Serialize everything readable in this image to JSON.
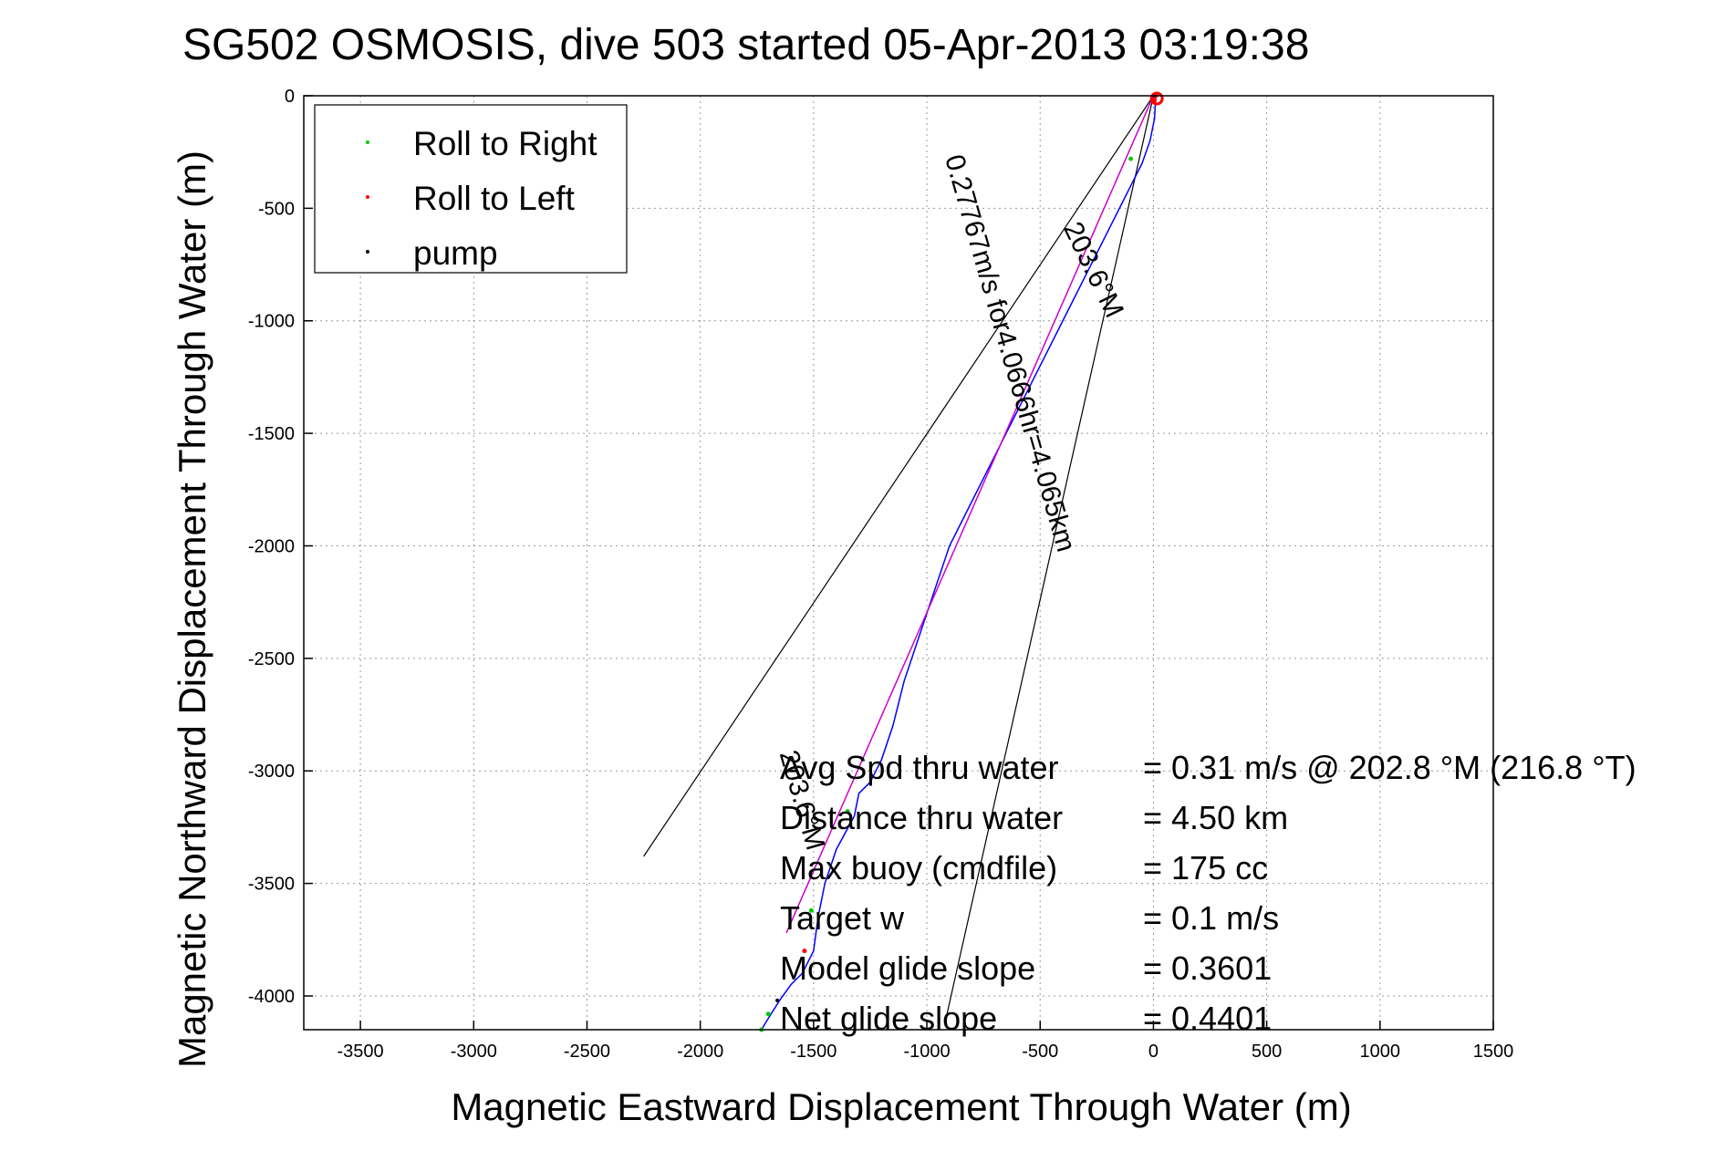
{
  "chart_data": {
    "type": "line",
    "title": "SG502 OSMOSIS, dive 503 started 05-Apr-2013 03:19:38",
    "xlabel": "Magnetic Eastward Displacement Through Water (m)",
    "ylabel": "Magnetic Northward Displacement Through Water (m)",
    "xlim": [
      -3750,
      1500
    ],
    "ylim": [
      -4150,
      0
    ],
    "xticks": [
      -3500,
      -3000,
      -2500,
      -2000,
      -1500,
      -1000,
      -500,
      0,
      500,
      1000,
      1500
    ],
    "yticks": [
      0,
      -500,
      -1000,
      -1500,
      -2000,
      -2500,
      -3000,
      -3500,
      -4000
    ],
    "grid": true,
    "legend_position": "top-left",
    "legend": [
      {
        "label": "Roll to Right",
        "color": "#00cc00"
      },
      {
        "label": "Roll to Left",
        "color": "#ff0000"
      },
      {
        "label": "pump",
        "color": "#000000"
      }
    ],
    "series": [
      {
        "color": "#0000ff",
        "x": [
          10,
          5,
          -15,
          -50,
          -100,
          -150,
          -200,
          -300,
          -400,
          -500,
          -600,
          -700,
          -800,
          -900,
          -1000,
          -1100,
          -1150,
          -1200,
          -1250,
          -1300,
          -1320,
          -1400,
          -1450,
          -1480,
          -1500,
          -1550,
          -1600,
          -1650,
          -1700,
          -1730
        ],
        "y": [
          0,
          -100,
          -200,
          -300,
          -400,
          -500,
          -600,
          -800,
          -1000,
          -1200,
          -1400,
          -1600,
          -1800,
          -2000,
          -2300,
          -2600,
          -2800,
          -2950,
          -3050,
          -3100,
          -3200,
          -3350,
          -3500,
          -3650,
          -3800,
          -3900,
          -3950,
          -4020,
          -4100,
          -4150
        ]
      },
      {
        "color": "#cc00cc",
        "x": [
          0,
          -1620
        ],
        "y": [
          0,
          -3720
        ]
      }
    ],
    "cone_lines": [
      {
        "x": [
          0,
          -2250
        ],
        "y": [
          0,
          -3380
        ]
      },
      {
        "x": [
          0,
          -920
        ],
        "y": [
          0,
          -4120
        ]
      }
    ],
    "roll_right_points": {
      "x": [
        -100,
        -1350,
        -1730,
        -1700,
        -1510
      ],
      "y": [
        -280,
        -3180,
        -4150,
        -4080,
        -3620
      ]
    },
    "roll_left_points": {
      "x": [
        10,
        5,
        -1540
      ],
      "y": [
        0,
        -20,
        -3800
      ]
    },
    "pump_points": {
      "x": [
        0,
        -1660
      ],
      "y": [
        0,
        -4020
      ]
    },
    "start_marker": {
      "x": 15,
      "y": 0,
      "label": "o"
    },
    "annotations": [
      {
        "text": "0.27767m/s for4.0666hr=4.065km",
        "rotation_deg": 74
      },
      {
        "text": "203.6°M",
        "rotation_deg": 64
      },
      {
        "text": "203.6°M",
        "rotation_deg": 74
      }
    ],
    "info_rows": [
      {
        "label": "Avg Spd thru water",
        "value": "=  0.31 m/s @ 202.8 °M (216.8 °T)"
      },
      {
        "label": "Distance thru water",
        "value": "=  4.50 km"
      },
      {
        "label": "Max buoy (cmdfile)",
        "value": "= 175 cc"
      },
      {
        "label": "Target w",
        "value": "= 0.1 m/s"
      },
      {
        "label": "Model glide slope",
        "value": "= 0.3601"
      },
      {
        "label": "Net glide slope",
        "value": "= 0.4401"
      }
    ]
  }
}
